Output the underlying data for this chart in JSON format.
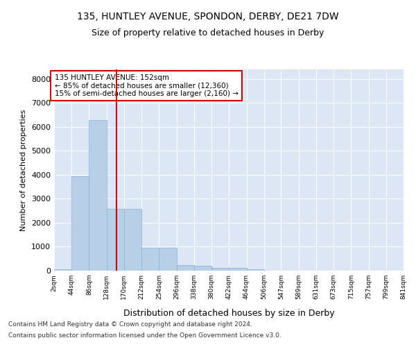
{
  "title1": "135, HUNTLEY AVENUE, SPONDON, DERBY, DE21 7DW",
  "title2": "Size of property relative to detached houses in Derby",
  "xlabel": "Distribution of detached houses by size in Derby",
  "ylabel": "Number of detached properties",
  "bar_color": "#b8cfe8",
  "bar_edge_color": "#8aadd4",
  "background_color": "#dce6f5",
  "vline_color": "#cc0000",
  "vline_x": 152,
  "annotation_text": "135 HUNTLEY AVENUE: 152sqm\n← 85% of detached houses are smaller (12,360)\n15% of semi-detached houses are larger (2,160) →",
  "annotation_box_color": "white",
  "annotation_border_color": "#cc0000",
  "footer1": "Contains HM Land Registry data © Crown copyright and database right 2024.",
  "footer2": "Contains public sector information licensed under the Open Government Licence v3.0.",
  "bin_edges": [
    2,
    44,
    86,
    128,
    170,
    212,
    254,
    296,
    338,
    380,
    422,
    464,
    506,
    547,
    589,
    631,
    673,
    715,
    757,
    799,
    841
  ],
  "bin_values": [
    50,
    3950,
    6300,
    2580,
    2580,
    950,
    950,
    240,
    200,
    130,
    120,
    50,
    0,
    0,
    0,
    0,
    0,
    0,
    0,
    0
  ],
  "ylim": [
    0,
    8400
  ],
  "yticks": [
    0,
    1000,
    2000,
    3000,
    4000,
    5000,
    6000,
    7000,
    8000
  ],
  "tick_labels": [
    "2sqm",
    "44sqm",
    "86sqm",
    "128sqm",
    "170sqm",
    "212sqm",
    "254sqm",
    "296sqm",
    "338sqm",
    "380sqm",
    "422sqm",
    "464sqm",
    "506sqm",
    "547sqm",
    "589sqm",
    "631sqm",
    "673sqm",
    "715sqm",
    "757sqm",
    "799sqm",
    "841sqm"
  ]
}
